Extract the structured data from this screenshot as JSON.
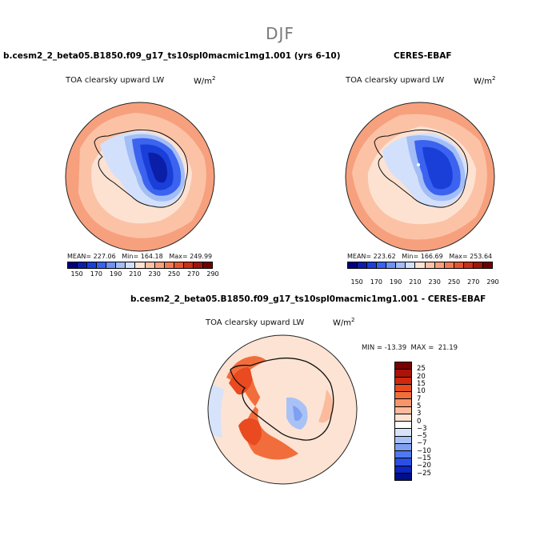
{
  "page": {
    "title": "DJF"
  },
  "panels": [
    {
      "case_title": "b.cesm2_2_beta05.B1850.f09_g17_ts10spl0macmic1mg1.001 (yrs 6-10)",
      "field_label": "TOA clearsky upward LW",
      "units_base": "W/m",
      "units_exp": "2",
      "stats": "MEAN= 227.06   Min= 164.18   Max= 249.99",
      "colorbar_ticks": [
        "150",
        "170",
        "190",
        "210",
        "230",
        "250",
        "270",
        "290"
      ]
    },
    {
      "case_title": "CERES-EBAF",
      "field_label": "TOA clearsky upward LW",
      "units_base": "W/m",
      "units_exp": "2",
      "stats": "MEAN= 223.62   Min= 166.69   Max= 253.64",
      "colorbar_ticks": [
        "150",
        "170",
        "190",
        "210",
        "230",
        "250",
        "270",
        "290"
      ]
    }
  ],
  "diff_panel": {
    "case_title": "b.cesm2_2_beta05.B1850.f09_g17_ts10spl0macmic1mg1.001 - CERES-EBAF",
    "field_label": "TOA clearsky upward LW",
    "units_base": "W/m",
    "units_exp": "2",
    "stats": "MIN = -13.39  MAX =  21.19",
    "colorbar_ticks": [
      "25",
      "20",
      "15",
      "10",
      "7",
      "5",
      "3",
      "0",
      "−3",
      "−5",
      "−7",
      "−10",
      "−15",
      "−20",
      "−25"
    ]
  },
  "colors": {
    "abs_scale": [
      "#00007f",
      "#0a1ea8",
      "#1a3fd9",
      "#3b63f0",
      "#6f92f3",
      "#a3bdf6",
      "#d3e0fb",
      "#fde2d2",
      "#fbc2a6",
      "#f7a07d",
      "#f17b56",
      "#e45632",
      "#c9301a",
      "#a0140a",
      "#700000"
    ],
    "diff_scale": [
      "#7a0000",
      "#a81408",
      "#cc2a10",
      "#e94a1f",
      "#f26d3c",
      "#f8946a",
      "#fbbb9c",
      "#fde3d3",
      "#ffffff",
      "#d6e3fb",
      "#a9c2f6",
      "#7e9ff2",
      "#5178ee",
      "#2a4fe2",
      "#0e25bf",
      "#000f85"
    ]
  }
}
